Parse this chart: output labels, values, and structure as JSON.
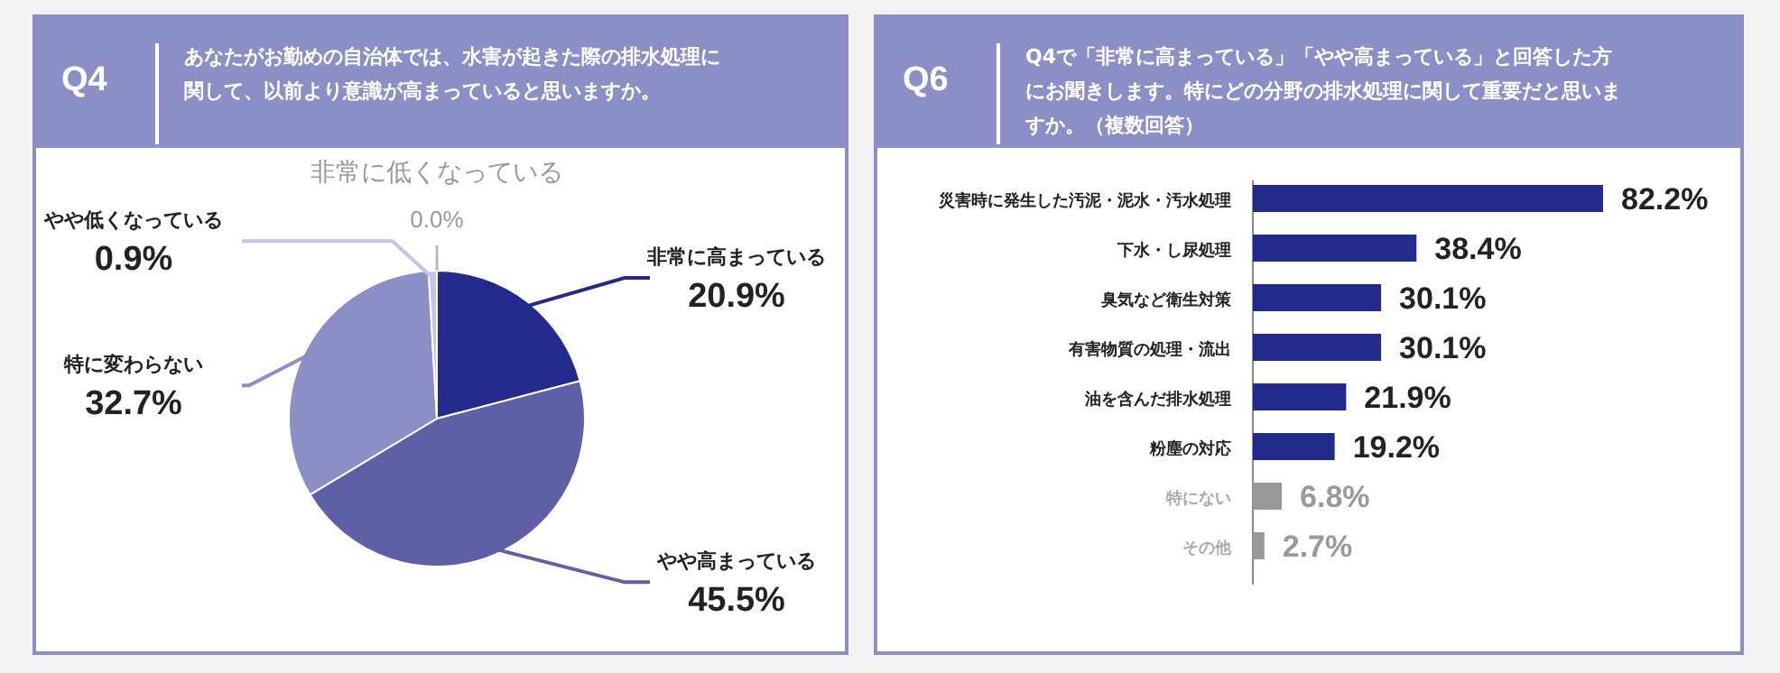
{
  "chart_data": [
    {
      "type": "pie",
      "title": "Q4",
      "subtitle": "あなたがお勤めの自治体では、水害が起きた際の排水処理に関して、以前より意識が高まっていると思いますか。",
      "categories": [
        "非常に高まっている",
        "やや高まっている",
        "特に変わらない",
        "やや低くなっている",
        "非常に低くなっている"
      ],
      "values": [
        20.9,
        45.5,
        32.7,
        0.9,
        0.0
      ],
      "value_labels": [
        "20.9%",
        "45.5%",
        "32.7%",
        "0.9%",
        "0.0%"
      ],
      "colors": [
        "#232a8c",
        "#5f5fa8",
        "#8b8fc6",
        "#c3c5e6",
        "#c8c8c8"
      ]
    },
    {
      "type": "bar",
      "orientation": "horizontal",
      "title": "Q6",
      "subtitle": "Q4で「非常に高まっている」「やや高まっている」と回答した方にお聞きします。特にどの分野の排水処理に関して重要だと思いますか。（複数回答）",
      "categories": [
        "災害時に発生した汚泥・泥水・汚水処理",
        "下水・し尿処理",
        "臭気など衛生対策",
        "有害物質の処理・流出",
        "油を含んだ排水処理",
        "粉塵の対応",
        "特にない",
        "その他"
      ],
      "values": [
        82.2,
        38.4,
        30.1,
        30.1,
        21.9,
        19.2,
        6.8,
        2.7
      ],
      "value_labels": [
        "82.2%",
        "38.4%",
        "30.1%",
        "30.1%",
        "21.9%",
        "19.2%",
        "6.8%",
        "2.7%"
      ],
      "colors": [
        "#232a8c",
        "#232a8c",
        "#232a8c",
        "#232a8c",
        "#232a8c",
        "#232a8c",
        "#999999",
        "#999999"
      ]
    }
  ]
}
